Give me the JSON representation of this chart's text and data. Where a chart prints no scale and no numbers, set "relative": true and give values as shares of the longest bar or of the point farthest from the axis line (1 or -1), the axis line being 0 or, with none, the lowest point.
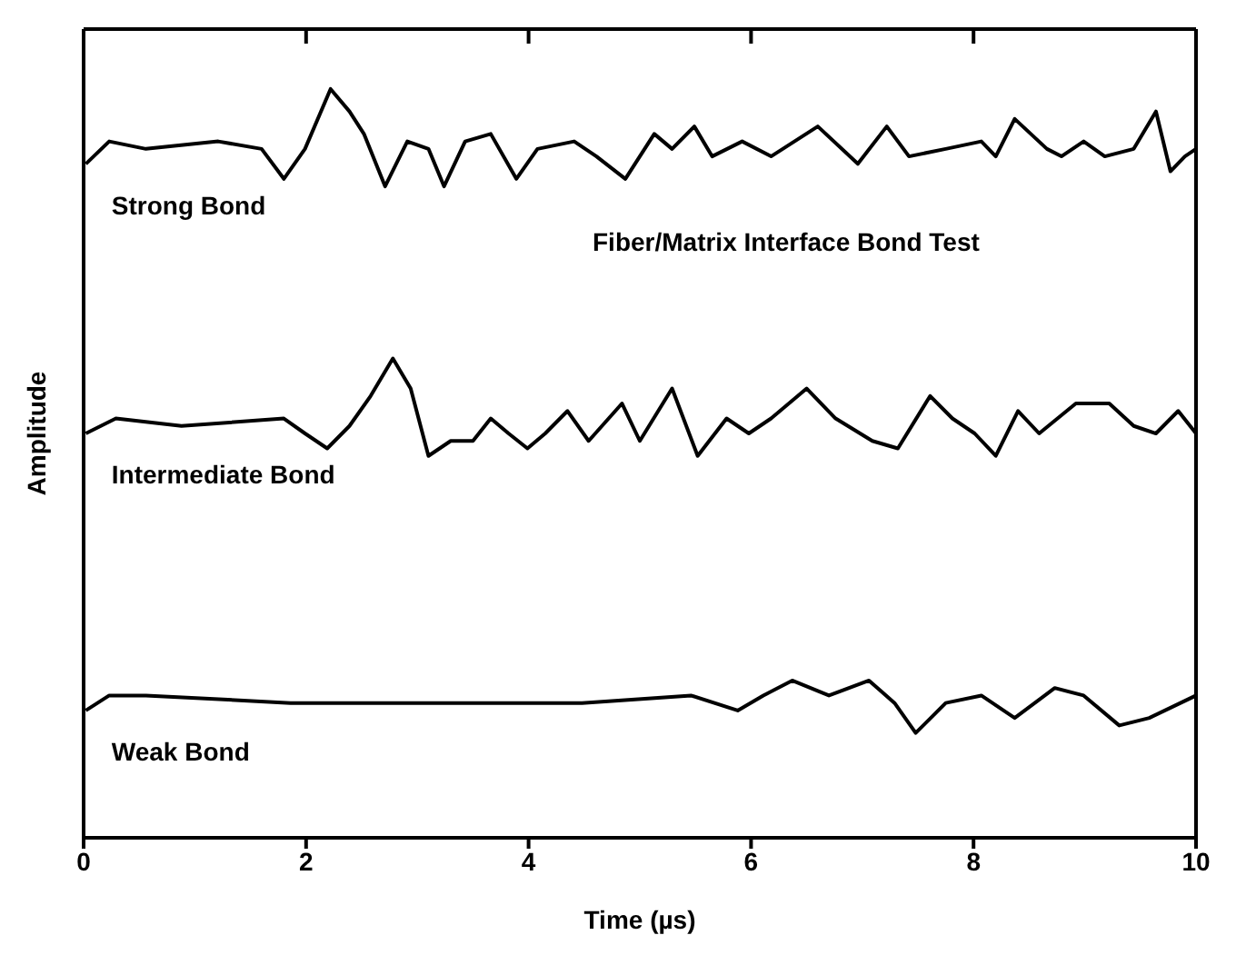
{
  "chart_data": {
    "type": "line",
    "title": "Fiber/Matrix Interface Bond Test",
    "xlabel": "Time (µs)",
    "ylabel": "Amplitude",
    "relative": true,
    "xlim": [
      0,
      10
    ],
    "xticks": [
      0,
      2,
      4,
      6,
      8,
      10
    ],
    "marker": "none",
    "line_style": "solid",
    "series": [
      {
        "name": "Strong Bond",
        "color": "#000000",
        "x": [
          0.02,
          0.23,
          0.56,
          1.21,
          1.6,
          1.8,
          1.99,
          2.22,
          2.39,
          2.52,
          2.71,
          2.91,
          3.1,
          3.24,
          3.43,
          3.66,
          3.89,
          4.08,
          4.41,
          4.61,
          4.87,
          5.13,
          5.29,
          5.49,
          5.65,
          5.92,
          6.18,
          6.6,
          6.96,
          7.22,
          7.42,
          7.75,
          8.07,
          8.2,
          8.37,
          8.66,
          8.79,
          8.99,
          9.18,
          9.44,
          9.64,
          9.77,
          9.9,
          10.0
        ],
        "values": [
          0.9,
          0.93,
          0.92,
          0.93,
          0.92,
          0.88,
          0.92,
          1.0,
          0.97,
          0.94,
          0.87,
          0.93,
          0.92,
          0.87,
          0.93,
          0.94,
          0.88,
          0.92,
          0.93,
          0.91,
          0.88,
          0.94,
          0.92,
          0.95,
          0.91,
          0.93,
          0.91,
          0.95,
          0.9,
          0.95,
          0.91,
          0.92,
          0.93,
          0.91,
          0.96,
          0.92,
          0.91,
          0.93,
          0.91,
          0.92,
          0.97,
          0.89,
          0.91,
          0.92
        ]
      },
      {
        "name": "Intermediate Bond",
        "color": "#000000",
        "x": [
          0.02,
          0.29,
          0.88,
          1.8,
          1.99,
          2.19,
          2.39,
          2.58,
          2.78,
          2.94,
          3.1,
          3.3,
          3.5,
          3.66,
          3.82,
          3.99,
          4.15,
          4.35,
          4.54,
          4.84,
          5.0,
          5.29,
          5.52,
          5.78,
          5.98,
          6.18,
          6.5,
          6.76,
          7.09,
          7.32,
          7.61,
          7.81,
          8.01,
          8.2,
          8.4,
          8.59,
          8.92,
          9.22,
          9.44,
          9.64,
          9.84,
          10.0
        ],
        "values": [
          0.54,
          0.56,
          0.55,
          0.56,
          0.54,
          0.52,
          0.55,
          0.59,
          0.64,
          0.6,
          0.51,
          0.53,
          0.53,
          0.56,
          0.54,
          0.52,
          0.54,
          0.57,
          0.53,
          0.58,
          0.53,
          0.6,
          0.51,
          0.56,
          0.54,
          0.56,
          0.6,
          0.56,
          0.53,
          0.52,
          0.59,
          0.56,
          0.54,
          0.51,
          0.57,
          0.54,
          0.58,
          0.58,
          0.55,
          0.54,
          0.57,
          0.54
        ]
      },
      {
        "name": "Weak Bond",
        "color": "#000000",
        "x": [
          0.02,
          0.23,
          0.56,
          1.86,
          3.17,
          4.48,
          5.46,
          5.88,
          6.11,
          6.37,
          6.7,
          7.06,
          7.29,
          7.48,
          7.75,
          8.07,
          8.37,
          8.73,
          8.99,
          9.31,
          9.58,
          10.0
        ],
        "values": [
          0.17,
          0.19,
          0.19,
          0.18,
          0.18,
          0.18,
          0.19,
          0.17,
          0.19,
          0.21,
          0.19,
          0.21,
          0.18,
          0.14,
          0.18,
          0.19,
          0.16,
          0.2,
          0.19,
          0.15,
          0.16,
          0.19
        ]
      }
    ]
  }
}
